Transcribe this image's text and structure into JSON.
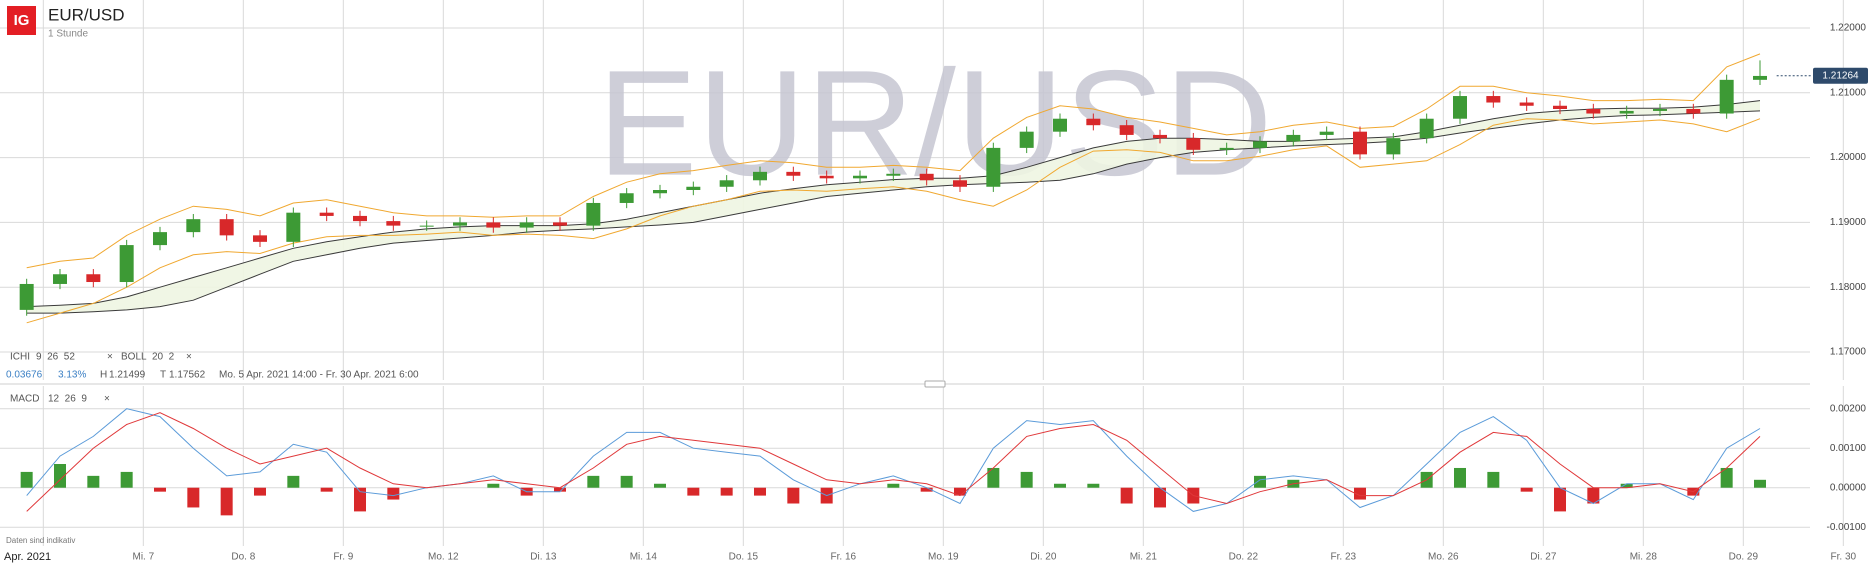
{
  "chart_data": [
    {
      "type": "candlestick",
      "title": "EUR/USD",
      "interval": "1 Stunde",
      "logo": "IG",
      "open": [
        1.1765,
        1.1805,
        1.182,
        1.1808,
        1.1865,
        1.1885,
        1.1905,
        1.188,
        1.187,
        1.1915,
        1.191,
        1.1902,
        1.1895,
        1.1895,
        1.19,
        1.1892,
        1.19,
        1.1895,
        1.193,
        1.1945,
        1.195,
        1.1955,
        1.1965,
        1.1978,
        1.1972,
        1.1968,
        1.1972,
        1.1975,
        1.1965,
        1.1955,
        1.2015,
        1.204,
        1.206,
        1.205,
        1.2035,
        1.203,
        1.2012,
        1.2015,
        1.2025,
        1.2035,
        1.204,
        1.2005,
        1.203,
        1.206,
        1.2095,
        1.2085,
        1.208,
        1.2075,
        1.2068,
        1.2072,
        1.2075,
        1.2068,
        1.212
      ],
      "high": [
        1.1813,
        1.1828,
        1.1828,
        1.1873,
        1.1893,
        1.1913,
        1.1913,
        1.1888,
        1.1923,
        1.1923,
        1.1918,
        1.191,
        1.1903,
        1.1908,
        1.1908,
        1.1908,
        1.1908,
        1.1938,
        1.1953,
        1.1958,
        1.1963,
        1.1973,
        1.1986,
        1.1986,
        1.198,
        1.198,
        1.1983,
        1.1983,
        1.1973,
        1.2023,
        1.2048,
        1.2068,
        1.2068,
        1.2058,
        1.2043,
        1.2038,
        1.2023,
        1.2033,
        1.2043,
        1.2048,
        1.2048,
        1.2038,
        1.2068,
        1.2103,
        1.2103,
        1.2093,
        1.2088,
        1.2083,
        1.208,
        1.2083,
        1.2083,
        1.2128,
        1.215
      ],
      "low": [
        1.1756,
        1.1797,
        1.18,
        1.18,
        1.1857,
        1.1877,
        1.1872,
        1.1862,
        1.1862,
        1.1902,
        1.1894,
        1.1887,
        1.1887,
        1.1887,
        1.1884,
        1.1884,
        1.1887,
        1.1887,
        1.1922,
        1.1937,
        1.1942,
        1.1947,
        1.1957,
        1.1964,
        1.196,
        1.196,
        1.1964,
        1.1957,
        1.1947,
        1.1947,
        1.2007,
        1.2032,
        1.2042,
        1.2027,
        1.2022,
        1.2004,
        1.2004,
        1.2007,
        1.2017,
        1.2027,
        1.1997,
        1.1997,
        1.2022,
        1.2052,
        1.2077,
        1.2072,
        1.2067,
        1.206,
        1.206,
        1.2064,
        1.206,
        1.206,
        1.2112
      ],
      "close": [
        1.1805,
        1.182,
        1.1808,
        1.1865,
        1.1885,
        1.1905,
        1.188,
        1.187,
        1.1915,
        1.191,
        1.1902,
        1.1895,
        1.1895,
        1.19,
        1.1892,
        1.19,
        1.1895,
        1.193,
        1.1945,
        1.195,
        1.1955,
        1.1965,
        1.1978,
        1.1972,
        1.1968,
        1.1972,
        1.1975,
        1.1965,
        1.1955,
        1.2015,
        1.204,
        1.206,
        1.205,
        1.2035,
        1.203,
        1.2012,
        1.2015,
        1.2025,
        1.2035,
        1.204,
        1.2005,
        1.203,
        1.206,
        1.2095,
        1.2085,
        1.208,
        1.2075,
        1.2068,
        1.2072,
        1.2075,
        1.2068,
        1.212,
        1.2126
      ],
      "up_color": "#3d9a35",
      "down_color": "#d8282a",
      "overlays": [
        {
          "name": "ICHI",
          "params": "9  26  52",
          "fill": "#eef5e2",
          "lines": [
            {
              "color": "#3a3a3a",
              "values": [
                1.177,
                1.1772,
                1.1775,
                1.1785,
                1.18,
                1.1815,
                1.183,
                1.1845,
                1.186,
                1.187,
                1.1878,
                1.1885,
                1.189,
                1.1893,
                1.1895,
                1.1895,
                1.1895,
                1.1898,
                1.1905,
                1.1915,
                1.1925,
                1.1935,
                1.1945,
                1.1952,
                1.1958,
                1.1962,
                1.1966,
                1.1968,
                1.1968,
                1.1972,
                1.1985,
                1.2,
                1.2015,
                1.2025,
                1.203,
                1.203,
                1.2028,
                1.2025,
                1.2025,
                1.2028,
                1.203,
                1.2032,
                1.204,
                1.205,
                1.206,
                1.2068,
                1.2072,
                1.2075,
                1.2076,
                1.2076,
                1.2078,
                1.2082,
                1.2088
              ]
            },
            {
              "color": "#3a3a3a",
              "values": [
                1.176,
                1.176,
                1.1762,
                1.1765,
                1.177,
                1.178,
                1.18,
                1.182,
                1.184,
                1.185,
                1.186,
                1.1868,
                1.1872,
                1.1876,
                1.188,
                1.1885,
                1.1888,
                1.189,
                1.1893,
                1.1896,
                1.19,
                1.191,
                1.192,
                1.193,
                1.194,
                1.1945,
                1.195,
                1.1955,
                1.1958,
                1.196,
                1.1962,
                1.1965,
                1.1975,
                1.199,
                1.2,
                1.2008,
                1.2012,
                1.2015,
                1.2018,
                1.202,
                1.2022,
                1.2025,
                1.203,
                1.2038,
                1.2045,
                1.2052,
                1.2058,
                1.2062,
                1.2065,
                1.2066,
                1.2068,
                1.207,
                1.2072
              ]
            }
          ]
        },
        {
          "name": "BOLL",
          "params": "20  2",
          "lines": [
            {
              "color": "#f0a830",
              "values": [
                1.183,
                1.184,
                1.1845,
                1.188,
                1.1905,
                1.1925,
                1.192,
                1.191,
                1.193,
                1.1935,
                1.1925,
                1.1915,
                1.191,
                1.191,
                1.1908,
                1.191,
                1.191,
                1.194,
                1.1962,
                1.1975,
                1.198,
                1.1988,
                1.1995,
                1.1992,
                1.1985,
                1.1985,
                1.1988,
                1.1985,
                1.198,
                1.203,
                1.2062,
                1.208,
                1.2075,
                1.2062,
                1.2055,
                1.2045,
                1.2035,
                1.204,
                1.205,
                1.2055,
                1.2045,
                1.2048,
                1.2075,
                1.211,
                1.211,
                1.21,
                1.2095,
                1.2088,
                1.2088,
                1.209,
                1.2088,
                1.214,
                1.216
              ]
            },
            {
              "color": "#f0a830",
              "values": [
                1.1745,
                1.176,
                1.1775,
                1.18,
                1.183,
                1.185,
                1.1855,
                1.1852,
                1.1868,
                1.1878,
                1.188,
                1.188,
                1.1882,
                1.1885,
                1.188,
                1.1882,
                1.188,
                1.1875,
                1.189,
                1.191,
                1.1925,
                1.1935,
                1.1948,
                1.195,
                1.1948,
                1.1952,
                1.1955,
                1.1948,
                1.1935,
                1.1925,
                1.195,
                1.1985,
                1.201,
                1.2012,
                1.2008,
                1.1995,
                1.1995,
                1.2002,
                1.2012,
                1.2018,
                1.1985,
                1.199,
                1.1995,
                1.202,
                1.205,
                1.206,
                1.2058,
                1.2052,
                1.2055,
                1.2058,
                1.2052,
                1.204,
                1.206
              ]
            }
          ]
        }
      ],
      "remove_icon": "×",
      "stats": {
        "change": 0.03676,
        "change_pct": "3.13%",
        "high_label": "H",
        "high": 1.21499,
        "low_label": "T",
        "low": 1.17562,
        "range": "Mo. 5 Apr. 2021 14:00 - Fr. 30 Apr. 2021 6:00"
      },
      "last_price": 1.21264,
      "ylim": [
        1.16568,
        1.22432
      ],
      "yticks": [
        {
          "value": 1.17,
          "label": "1.17000"
        },
        {
          "value": 1.18,
          "label": "1.18000"
        },
        {
          "value": 1.19,
          "label": "1.19000"
        },
        {
          "value": 1.2,
          "label": "1.20000"
        },
        {
          "value": 1.21,
          "label": "1.21000"
        },
        {
          "value": 1.22,
          "label": "1.22000"
        }
      ],
      "xlim": [
        -0.3,
        55.8
      ],
      "xticks": [
        {
          "value": 1,
          "label": "Apr. 2021"
        },
        {
          "value": 4,
          "label": "Mi. 7"
        },
        {
          "value": 7,
          "label": "Do. 8"
        },
        {
          "value": 10,
          "label": "Fr. 9"
        },
        {
          "value": 13,
          "label": "Mo. 12"
        },
        {
          "value": 16,
          "label": "Di. 13"
        },
        {
          "value": 19,
          "label": "Mi. 14"
        },
        {
          "value": 22,
          "label": "Do. 15"
        },
        {
          "value": 25,
          "label": "Fr. 16"
        },
        {
          "value": 28,
          "label": "Mo. 19"
        },
        {
          "value": 31,
          "label": "Di. 20"
        },
        {
          "value": 34,
          "label": "Mi. 21"
        },
        {
          "value": 37,
          "label": "Do. 22"
        },
        {
          "value": 40,
          "label": "Fr. 23"
        },
        {
          "value": 43,
          "label": "Mo. 26"
        },
        {
          "value": 46,
          "label": "Di. 27"
        },
        {
          "value": 49,
          "label": "Mi. 28"
        },
        {
          "value": 52,
          "label": "Do. 29"
        },
        {
          "value": 55,
          "label": "Fr. 30"
        }
      ],
      "grid": true,
      "disclaimer": "Daten sind indikativ"
    },
    {
      "type": "macd",
      "name": "MACD",
      "params": "12  26  9",
      "series": [
        {
          "color": "#5b9bd9",
          "values": [
            -0.0002,
            0.0008,
            0.0013,
            0.002,
            0.0018,
            0.001,
            0.0003,
            0.0004,
            0.0011,
            0.0009,
            -0.0001,
            -0.0002,
            0.0,
            0.0001,
            0.0003,
            -0.0001,
            -0.0001,
            0.0008,
            0.0014,
            0.0014,
            0.001,
            0.0009,
            0.0008,
            0.0002,
            -0.0002,
            0.0001,
            0.0003,
            0.0,
            -0.0004,
            0.001,
            0.0017,
            0.0016,
            0.0017,
            0.0008,
            0.0,
            -0.0006,
            -0.0004,
            0.0002,
            0.0003,
            0.0002,
            -0.0005,
            -0.0002,
            0.0006,
            0.0014,
            0.0018,
            0.0012,
            0.0,
            -0.0004,
            0.0001,
            0.0001,
            -0.0003,
            0.001,
            0.0015
          ]
        },
        {
          "color": "#e0383a",
          "values": [
            -0.0006,
            0.0002,
            0.001,
            0.0016,
            0.0019,
            0.0015,
            0.001,
            0.0006,
            0.0008,
            0.001,
            0.0005,
            0.0001,
            0.0,
            0.0001,
            0.0002,
            0.0001,
            0.0,
            0.0005,
            0.0011,
            0.0013,
            0.0012,
            0.0011,
            0.001,
            0.0006,
            0.0002,
            0.0001,
            0.0002,
            0.0001,
            -0.0002,
            0.0005,
            0.0013,
            0.0015,
            0.0016,
            0.0012,
            0.0005,
            -0.0002,
            -0.0004,
            -0.0001,
            0.0001,
            0.0002,
            -0.0002,
            -0.0002,
            0.0002,
            0.0009,
            0.0014,
            0.0013,
            0.0006,
            0.0,
            0.0,
            0.0001,
            -0.0001,
            0.0005,
            0.0013
          ]
        }
      ],
      "histogram": {
        "up_color": "#3d9a35",
        "down_color": "#d8282a",
        "values": [
          0.0004,
          0.0006,
          0.0003,
          0.0004,
          -0.0001,
          -0.0005,
          -0.0007,
          -0.0002,
          0.0003,
          -0.0001,
          -0.0006,
          -0.0003,
          0,
          0,
          0.0001,
          -0.0002,
          -0.0001,
          0.0003,
          0.0003,
          0.0001,
          -0.0002,
          -0.0002,
          -0.0002,
          -0.0004,
          -0.0004,
          0,
          0.0001,
          -0.0001,
          -0.0002,
          0.0005,
          0.0004,
          0.0001,
          0.0001,
          -0.0004,
          -0.0005,
          -0.0004,
          0,
          0.0003,
          0.0002,
          0,
          -0.0003,
          0,
          0.0004,
          0.0005,
          0.0004,
          -0.0001,
          -0.0006,
          -0.0004,
          0.0001,
          0,
          -0.0002,
          0.0005,
          0.0002
        ]
      },
      "ylim": [
        -0.0014,
        0.00255
      ],
      "yticks": [
        {
          "value": -0.001,
          "label": "-0.00100"
        },
        {
          "value": 0,
          "label": "0.00000"
        },
        {
          "value": 0.001,
          "label": "0.00100"
        },
        {
          "value": 0.002,
          "label": "0.00200"
        }
      ],
      "grid": true
    }
  ]
}
